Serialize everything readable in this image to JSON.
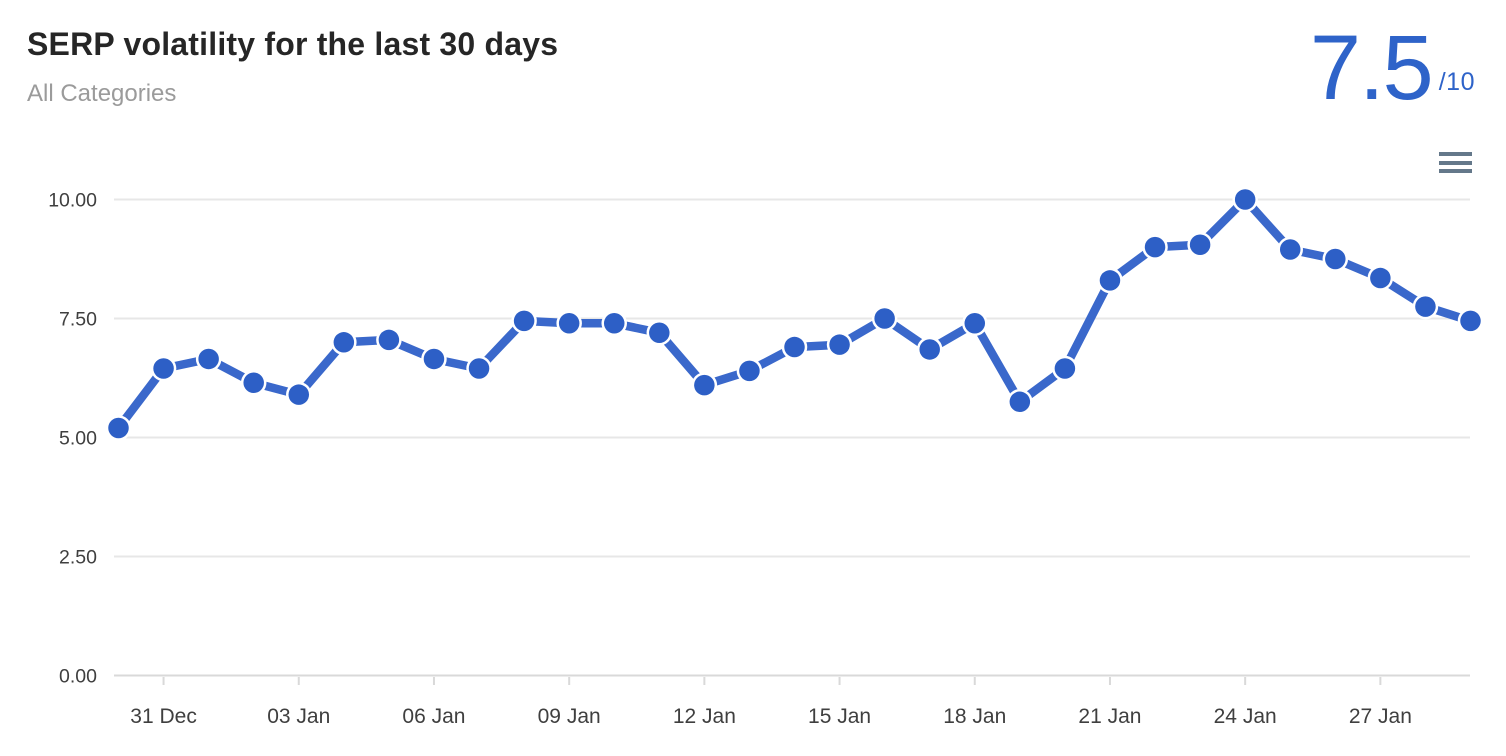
{
  "header": {
    "title": "SERP volatility for the last 30 days",
    "subtitle": "All Categories",
    "score_value": "7.5",
    "score_suffix": "/10"
  },
  "toolbar": {
    "menu_icon": "hamburger-menu"
  },
  "colors": {
    "series_line": "#3a68cb",
    "point_fill": "#2d5fc6",
    "point_halo": "#ffffff",
    "score_text": "#2e63c9",
    "gridline": "#e7e7e7",
    "baseline": "#d9d9d9",
    "tick": "#d9d9d9",
    "axis_text": "#3f3f3f",
    "title_text": "#262626",
    "subtitle_text": "#9b9b9b",
    "menu_icon": "#64788a"
  },
  "chart_data": {
    "type": "line",
    "title": "SERP volatility for the last 30 days",
    "subtitle": "All Categories",
    "legend_position": "none",
    "grid": true,
    "ylim": [
      0,
      10
    ],
    "current_score": "7.5",
    "score_max": "10",
    "y_ticks": [
      {
        "value": 10,
        "label": "10.00"
      },
      {
        "value": 7.5,
        "label": "7.50"
      },
      {
        "value": 5,
        "label": "5.00"
      },
      {
        "value": 2.5,
        "label": "2.50"
      },
      {
        "value": 0,
        "label": "0.00"
      }
    ],
    "x_ticks": [
      {
        "index": 1,
        "label": "31 Dec"
      },
      {
        "index": 4,
        "label": "03 Jan"
      },
      {
        "index": 7,
        "label": "06 Jan"
      },
      {
        "index": 10,
        "label": "09 Jan"
      },
      {
        "index": 13,
        "label": "12 Jan"
      },
      {
        "index": 16,
        "label": "15 Jan"
      },
      {
        "index": 19,
        "label": "18 Jan"
      },
      {
        "index": 22,
        "label": "21 Jan"
      },
      {
        "index": 25,
        "label": "24 Jan"
      },
      {
        "index": 28,
        "label": "27 Jan"
      }
    ],
    "x_dates_estimated": [
      "30 Dec",
      "31 Dec",
      "01 Jan",
      "02 Jan",
      "03 Jan",
      "04 Jan",
      "05 Jan",
      "06 Jan",
      "07 Jan",
      "08 Jan",
      "09 Jan",
      "10 Jan",
      "11 Jan",
      "12 Jan",
      "13 Jan",
      "14 Jan",
      "15 Jan",
      "16 Jan",
      "17 Jan",
      "18 Jan",
      "19 Jan",
      "20 Jan",
      "21 Jan",
      "22 Jan",
      "23 Jan",
      "24 Jan",
      "25 Jan",
      "26 Jan",
      "27 Jan",
      "28 Jan",
      "29 Jan"
    ],
    "values": [
      5.2,
      6.45,
      6.65,
      6.15,
      5.9,
      7.0,
      7.05,
      6.65,
      6.45,
      7.45,
      7.4,
      7.4,
      7.2,
      6.1,
      6.4,
      6.9,
      6.95,
      7.5,
      6.85,
      7.4,
      5.75,
      6.45,
      8.3,
      9.0,
      9.05,
      10.0,
      8.95,
      8.75,
      8.35,
      7.75,
      7.45
    ]
  }
}
